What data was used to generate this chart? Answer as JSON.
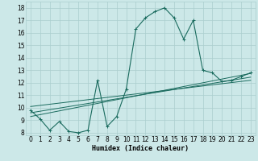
{
  "xlabel": "Humidex (Indice chaleur)",
  "bg_color": "#cce8e8",
  "line_color": "#1a6b5e",
  "grid_color": "#aacece",
  "xlim": [
    -0.5,
    23.5
  ],
  "ylim": [
    7.8,
    18.5
  ],
  "xticks": [
    0,
    1,
    2,
    3,
    4,
    5,
    6,
    7,
    8,
    9,
    10,
    11,
    12,
    13,
    14,
    15,
    16,
    17,
    18,
    19,
    20,
    21,
    22,
    23
  ],
  "yticks": [
    8,
    9,
    10,
    11,
    12,
    13,
    14,
    15,
    16,
    17,
    18
  ],
  "main_x": [
    0,
    1,
    2,
    3,
    4,
    5,
    6,
    7,
    8,
    9,
    10,
    11,
    12,
    13,
    14,
    15,
    16,
    17,
    18,
    19,
    20,
    21,
    22,
    23
  ],
  "main_y": [
    9.8,
    9.1,
    8.2,
    8.9,
    8.1,
    8.0,
    8.2,
    12.2,
    8.5,
    9.3,
    11.5,
    16.3,
    17.2,
    17.7,
    18.0,
    17.2,
    15.5,
    17.0,
    13.0,
    12.8,
    12.1,
    12.2,
    12.5,
    12.8
  ],
  "reg_lines": [
    {
      "x0": 0,
      "y0": 10.1,
      "x1": 23,
      "y1": 12.2
    },
    {
      "x0": 0,
      "y0": 9.6,
      "x1": 23,
      "y1": 12.45
    },
    {
      "x0": 0,
      "y0": 9.3,
      "x1": 23,
      "y1": 12.75
    }
  ],
  "marker": "+",
  "markersize": 3,
  "linewidth": 0.8,
  "tick_fontsize": 5.5,
  "xlabel_fontsize": 6.0
}
